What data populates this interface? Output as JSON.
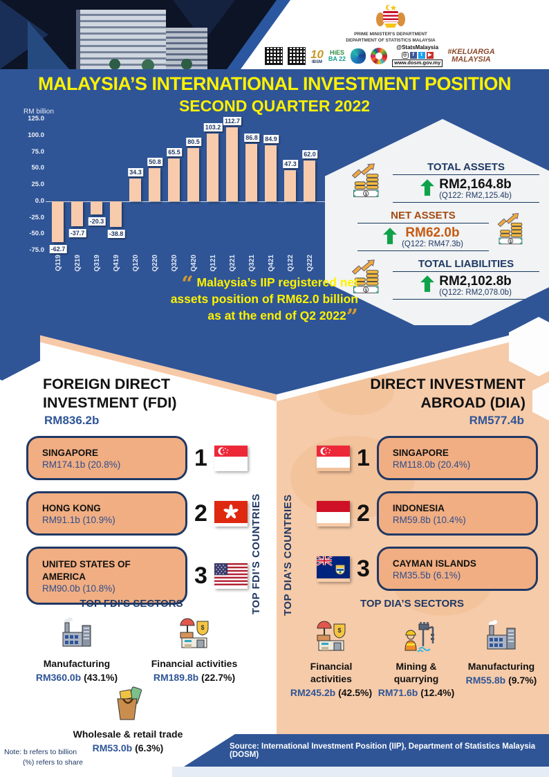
{
  "header": {
    "dept_line1": "PRIME MINISTER'S DEPARTMENT",
    "dept_line2": "DEPARTMENT OF STATISTICS MALAYSIA",
    "logo_10": "10",
    "logo_10_sub": "IBSM",
    "logo_hies_1": "HiES",
    "logo_hies_2": "BA 22",
    "social_handle": "@StatsMalaysia",
    "website": "www.dosm.gov.my",
    "hashtag_line1": "#KELUARGA",
    "hashtag_line2": "MALAYSIA"
  },
  "title": "MALAYSIA’S INTERNATIONAL INVESTMENT POSITION",
  "subtitle": "SECOND QUARTER 2022",
  "chart_data": {
    "type": "bar",
    "unit_label": "RM billion",
    "categories": [
      "Q119",
      "Q219",
      "Q319",
      "Q419",
      "Q120",
      "Q220",
      "Q320",
      "Q420",
      "Q121",
      "Q221",
      "Q321",
      "Q421",
      "Q122",
      "Q222"
    ],
    "values": [
      -62.7,
      -37.7,
      -20.3,
      -38.8,
      34.3,
      50.8,
      65.5,
      80.5,
      103.2,
      112.7,
      86.8,
      84.9,
      47.3,
      62.0
    ],
    "yticks": [
      125.0,
      100.0,
      75.0,
      50.0,
      25.0,
      0.0,
      -25.0,
      -50.0,
      -75.0
    ],
    "ylim": [
      -75,
      125
    ],
    "bar_color": "#F8CBAD",
    "title": "",
    "xlabel": "",
    "ylabel": "RM billion",
    "grid": false,
    "legend": "none"
  },
  "summary": {
    "total_assets": {
      "label": "TOTAL ASSETS",
      "value": "RM2,164.8b",
      "prev": "(Q122: RM2,125.4b)"
    },
    "net_assets": {
      "label": "NET ASSETS",
      "value": "RM62.0b",
      "prev": "(Q122: RM47.3b)"
    },
    "total_liabilities": {
      "label": "TOTAL LIABILITIES",
      "value": "RM2,102.8b",
      "prev": "(Q122: RM2,078.0b)"
    }
  },
  "quote": {
    "line1": "Malaysia’s IIP registered net",
    "line2": "assets position of RM62.0 billion",
    "line3": "as at the end of Q2 2022",
    "open_mark": "“",
    "close_mark": "”"
  },
  "fdi": {
    "title_line1": "FOREIGN DIRECT",
    "title_line2": "INVESTMENT (FDI)",
    "total": "RM836.2b",
    "countries_label": "TOP FDI’S COUNTRIES",
    "countries": [
      {
        "rank": "1",
        "name": "SINGAPORE",
        "value": "RM174.1b (20.8%)",
        "flag": "singapore"
      },
      {
        "rank": "2",
        "name": "HONG KONG",
        "value": "RM91.1b (10.9%)",
        "flag": "hong-kong"
      },
      {
        "rank": "3",
        "name": "UNITED STATES OF AMERICA",
        "value": "RM90.0b (10.8%)",
        "flag": "united-states"
      }
    ],
    "sectors_label": "TOP FDI’S SECTORS",
    "sectors": [
      {
        "name": "Manufacturing",
        "value": "RM360.0b",
        "share": " (43.1%)",
        "icon": "factory"
      },
      {
        "name": "Financial activities",
        "value": "RM189.8b",
        "share": " (22.7%)",
        "icon": "bank"
      },
      {
        "name": "Wholesale & retail trade",
        "value": "RM53.0b",
        "share": " (6.3%)",
        "icon": "shopping-bag"
      }
    ]
  },
  "dia": {
    "title_line1": "DIRECT INVESTMENT",
    "title_line2": "ABROAD (DIA)",
    "total": "RM577.4b",
    "countries_label": "TOP DIA’S COUNTRIES",
    "countries": [
      {
        "rank": "1",
        "name": "SINGAPORE",
        "value": "RM118.0b (20.4%)",
        "flag": "singapore"
      },
      {
        "rank": "2",
        "name": "INDONESIA",
        "value": "RM59.8b (10.4%)",
        "flag": "indonesia"
      },
      {
        "rank": "3",
        "name": "CAYMAN ISLANDS",
        "value": "RM35.5b (6.1%)",
        "flag": "cayman-islands"
      }
    ],
    "sectors_label": "TOP DIA’S SECTORS",
    "sectors": [
      {
        "name": "Financial activities",
        "value": "RM245.2b",
        "share": " (42.5%)",
        "icon": "bank"
      },
      {
        "name": "Mining & quarrying",
        "value": "RM71.6b",
        "share": " (12.4%)",
        "icon": "mining"
      },
      {
        "name": "Manufacturing",
        "value": "RM55.8b",
        "share": " (9.7%)",
        "icon": "factory"
      }
    ]
  },
  "note": {
    "line1": "Note: b refers to billion",
    "line2": "(%) refers to share"
  },
  "source": "Source: International Investment Position (IIP), Department of Statistics Malaysia (DOSM)",
  "colors": {
    "primary_blue": "#2F5597",
    "navy_text": "#1F3864",
    "bar_peach": "#F8CBAD",
    "right_bg_peach": "#F6CBA9",
    "card_peach": "#F1AE82",
    "title_yellow": "#FFF200",
    "quote_orange": "#D89B28",
    "arrow_green": "#0FA24A",
    "net_assets_brown": "#A5490F",
    "net_assets_orange": "#C55A11"
  }
}
